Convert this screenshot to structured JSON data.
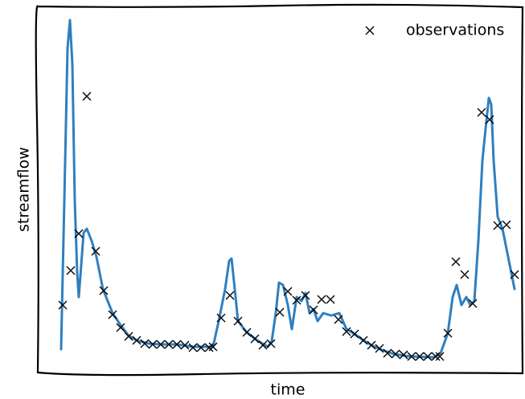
{
  "chart_data": {
    "type": "line",
    "xlabel": "time",
    "ylabel": "streamflow",
    "xlim": [
      0,
      60.3
    ],
    "ylim": [
      0,
      45.7
    ],
    "legend": "upper right",
    "series": [
      {
        "type": "line",
        "color": "#2f7fbf",
        "x": [
          2.9,
          3.3,
          3.7,
          4.0,
          4.3,
          4.6,
          4.9,
          5.1,
          5.4,
          5.7,
          6.1,
          6.7,
          7.3,
          8.1,
          9.3,
          10.3,
          11.3,
          12.3,
          13.8,
          15.3,
          17.3,
          19.3,
          21.8,
          22.5,
          23.3,
          23.8,
          24.1,
          24.5,
          24.9,
          26.0,
          27.3,
          28.6,
          29.1,
          29.6,
          30.0,
          30.5,
          31.1,
          31.6,
          32.2,
          32.8,
          33.3,
          33.8,
          34.3,
          34.8,
          35.5,
          36.5,
          37.5,
          38.4,
          39.4,
          40.5,
          41.5,
          42.8,
          44.3,
          46.3,
          49.3,
          50.1,
          51.0,
          51.6,
          52.1,
          52.7,
          53.3,
          53.8,
          54.3,
          54.8,
          55.3,
          55.7,
          56.1,
          56.4,
          56.7,
          57.2,
          57.8,
          58.5,
          59.3
        ],
        "values": [
          3.0,
          21.5,
          40.5,
          44.0,
          38.5,
          21.5,
          12.5,
          9.5,
          13.5,
          17.5,
          18.0,
          16.5,
          14.5,
          10.5,
          7.5,
          6.0,
          4.7,
          4.1,
          3.7,
          3.6,
          3.6,
          3.3,
          3.3,
          6.5,
          10.5,
          14.0,
          14.3,
          10.5,
          6.5,
          5.1,
          4.1,
          3.3,
          4.0,
          7.5,
          11.3,
          11.0,
          8.5,
          5.5,
          9.5,
          9.0,
          10.0,
          7.5,
          8.0,
          6.5,
          7.5,
          7.2,
          7.5,
          5.5,
          4.9,
          4.1,
          3.5,
          2.9,
          2.4,
          2.1,
          2.0,
          2.5,
          5.0,
          9.5,
          11.0,
          8.5,
          9.5,
          8.5,
          9.0,
          16.5,
          26.5,
          30.5,
          34.3,
          33.5,
          26.5,
          19.5,
          18.0,
          14.5,
          10.5
        ]
      },
      {
        "type": "scatter",
        "name": "observations",
        "color": "#000000",
        "marker": "x",
        "x": [
          3.1,
          4.1,
          5.1,
          6.1,
          7.2,
          8.2,
          9.3,
          10.3,
          11.3,
          12.3,
          13.3,
          14.3,
          15.3,
          16.3,
          17.3,
          18.3,
          19.3,
          20.3,
          21.3,
          21.8,
          22.8,
          23.9,
          24.9,
          26.0,
          27.0,
          28.0,
          29.0,
          30.1,
          31.1,
          32.2,
          33.3,
          34.3,
          35.3,
          36.4,
          37.4,
          38.4,
          39.4,
          40.5,
          41.5,
          42.5,
          43.5,
          44.5,
          45.5,
          46.5,
          47.5,
          48.5,
          49.5,
          50.0,
          51.0,
          52.0,
          53.1,
          54.1,
          55.2,
          56.2,
          57.2,
          58.3,
          59.3
        ],
        "values": [
          8.5,
          12.8,
          17.4,
          34.5,
          15.2,
          10.3,
          7.3,
          5.7,
          4.6,
          4.1,
          3.7,
          3.6,
          3.6,
          3.6,
          3.6,
          3.5,
          3.2,
          3.2,
          3.2,
          3.3,
          6.9,
          9.7,
          6.5,
          5.1,
          4.3,
          3.5,
          3.7,
          7.6,
          10.2,
          9.1,
          9.7,
          7.9,
          9.2,
          9.2,
          6.7,
          5.2,
          4.9,
          4.1,
          3.5,
          3.1,
          2.5,
          2.4,
          2.3,
          2.1,
          2.1,
          2.1,
          2.1,
          2.1,
          5.0,
          13.9,
          12.3,
          8.7,
          32.5,
          31.6,
          18.4,
          18.5,
          12.3
        ]
      }
    ]
  }
}
